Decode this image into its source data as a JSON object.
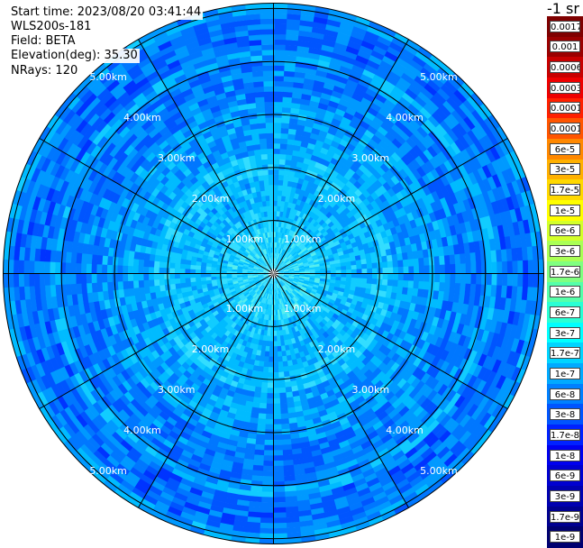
{
  "header": {
    "start_time": "Start time: 2023/08/20 03:41:44",
    "instrument": "WLS200s-181",
    "field": "Field: BETA",
    "elevation": "Elevation(deg): 35.30",
    "nrays": "NRays: 120"
  },
  "colorbar": {
    "title": "-1 sr",
    "labels": [
      "0.0017",
      "0.001",
      "0.0006",
      "0.0003",
      "0.00017",
      "0.0001",
      "6e-5",
      "3e-5",
      "1.7e-5",
      "1e-5",
      "6e-6",
      "3e-6",
      "1.7e-6",
      "1e-6",
      "6e-7",
      "3e-7",
      "1.7e-7",
      "1e-7",
      "6e-8",
      "3e-8",
      "1.7e-8",
      "1e-8",
      "6e-9",
      "3e-9",
      "1.7e-9",
      "1e-9"
    ],
    "colors": [
      "#7f0000",
      "#9b0000",
      "#c80000",
      "#ee0000",
      "#ff2000",
      "#ff5500",
      "#ff8800",
      "#ffb000",
      "#ffd800",
      "#ffff00",
      "#d4ff2a",
      "#aaff55",
      "#80ff80",
      "#55ffaa",
      "#2affd4",
      "#00ffff",
      "#00d4ff",
      "#00aaff",
      "#0080ff",
      "#0055ff",
      "#0022ff",
      "#0000ee",
      "#0000d0",
      "#0000b0",
      "#000090",
      "#000070"
    ]
  },
  "map": {
    "range_rings_km": [
      1,
      2,
      3,
      4,
      5
    ],
    "range_labels": [
      "1.00km",
      "2.00km",
      "3.00km",
      "4.00km",
      "5.00km"
    ],
    "azimuth_lines_deg": [
      0,
      30,
      60,
      90,
      120,
      150,
      180,
      210,
      240,
      270,
      300,
      330
    ],
    "max_range_km": 5.1,
    "nrays": 120
  }
}
